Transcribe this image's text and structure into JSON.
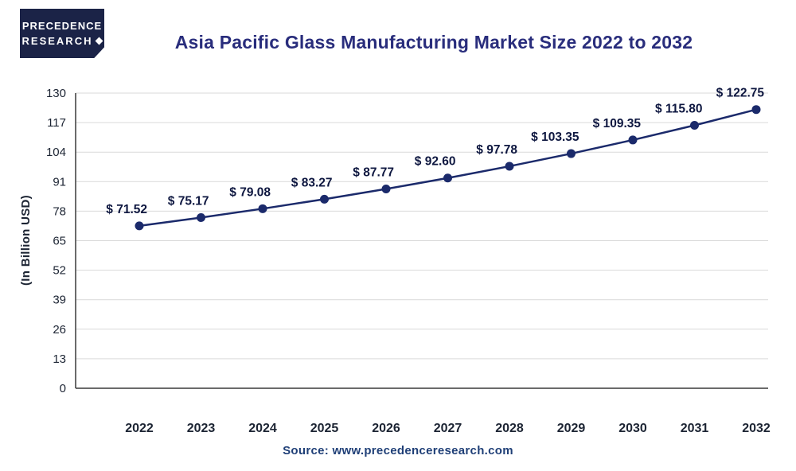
{
  "logo": {
    "line1": "PRECEDENCE",
    "line2": "RESEARCH"
  },
  "title": "Asia Pacific Glass Manufacturing Market Size 2022 to 2032",
  "source": "Source: www.precedenceresearch.com",
  "colors": {
    "logo_bg": "#1b2347",
    "logo_text": "#ffffff",
    "title_text": "#292d7c",
    "source_text": "#1f3f77",
    "tick_text": "#1c2433"
  },
  "chart_data": {
    "type": "line",
    "title": "Asia Pacific Glass Manufacturing Market Size 2022 to 2032",
    "xlabel": "",
    "ylabel": "(In Billion USD)",
    "x": [
      2022,
      2023,
      2024,
      2025,
      2026,
      2027,
      2028,
      2029,
      2030,
      2031,
      2032
    ],
    "values": [
      71.52,
      75.17,
      79.08,
      83.27,
      87.77,
      92.6,
      97.78,
      103.35,
      109.35,
      115.8,
      122.75
    ],
    "value_labels": [
      "$ 71.52",
      "$ 75.17",
      "$ 79.08",
      "$ 83.27",
      "$ 87.77",
      "$ 92.60",
      "$ 97.78",
      "$ 103.35",
      "$ 109.35",
      "$ 115.80",
      "$ 122.75"
    ],
    "ylim": [
      0,
      130
    ],
    "yticks": [
      0,
      13,
      26,
      39,
      52,
      65,
      78,
      91,
      104,
      117,
      130
    ],
    "grid": "horizontal",
    "legend": "none",
    "line_color": "#1b2a6b",
    "point_color": "#1b2a6b",
    "label_color": "#0e1740",
    "tick_color": "#1c2433",
    "axis_color": "#3a3a3a",
    "grid_color": "#d9d9d9"
  }
}
